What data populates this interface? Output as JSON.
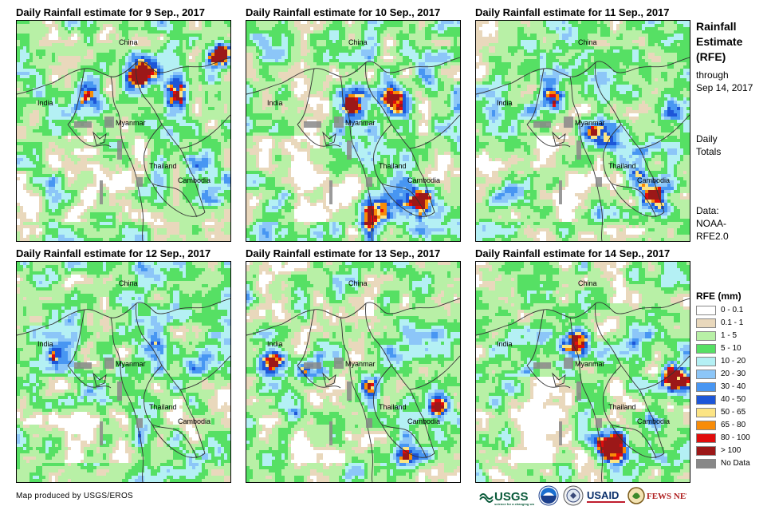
{
  "panels": [
    {
      "title": "Daily Rainfall estimate for 9 Sep., 2017"
    },
    {
      "title": "Daily Rainfall estimate for 10 Sep., 2017"
    },
    {
      "title": "Daily Rainfall estimate for 11 Sep., 2017"
    },
    {
      "title": "Daily Rainfall estimate for 12 Sep., 2017"
    },
    {
      "title": "Daily Rainfall estimate for 13 Sep., 2017"
    },
    {
      "title": "Daily Rainfall estimate for 14 Sep., 2017"
    }
  ],
  "map_labels": {
    "china": "China",
    "india": "India",
    "myanmar": "Myanmar",
    "thailand": "Thailand",
    "cambodia": "Cambodia"
  },
  "side": {
    "title": "Rainfall Estimate (RFE)",
    "through": "through",
    "date": "Sep 14, 2017",
    "daily": "Daily",
    "totals": "Totals",
    "data_label": "Data:",
    "data_src1": "NOAA-",
    "data_src2": "RFE2.0"
  },
  "legend": {
    "title": "RFE (mm)",
    "items": [
      {
        "label": "0 - 0.1",
        "color": "#ffffff"
      },
      {
        "label": "0.1 - 1",
        "color": "#e9d8bc"
      },
      {
        "label": "1 - 5",
        "color": "#b8f0a6"
      },
      {
        "label": "5 - 10",
        "color": "#56e064"
      },
      {
        "label": "10 - 20",
        "color": "#b4f0f4"
      },
      {
        "label": "20 - 30",
        "color": "#8cc6f8"
      },
      {
        "label": "30 - 40",
        "color": "#4896f2"
      },
      {
        "label": "40 - 50",
        "color": "#1d56d8"
      },
      {
        "label": "50 - 65",
        "color": "#fce484"
      },
      {
        "label": "65 - 80",
        "color": "#f88c08"
      },
      {
        "label": "80 - 100",
        "color": "#e00c0c"
      },
      {
        "label": "> 100",
        "color": "#9c1818"
      },
      {
        "label": "No Data",
        "color": "#888888"
      }
    ]
  },
  "footer": {
    "credit": "Map produced by USGS/EROS"
  },
  "logos": {
    "usgs": "USGS",
    "usaid": "USAID",
    "fewsnet": "FEWS NET"
  }
}
